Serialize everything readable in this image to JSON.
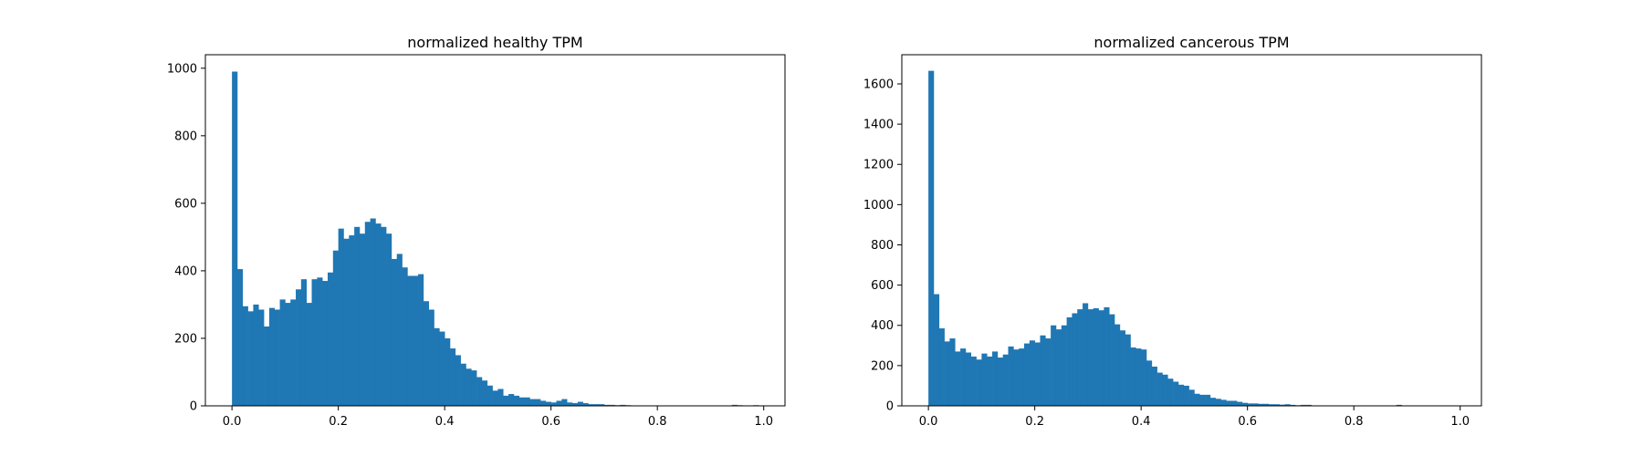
{
  "bar_color": "#1f77b4",
  "chart_data": [
    {
      "type": "bar",
      "title": "normalized healthy TPM",
      "xlabel": "",
      "ylabel": "",
      "xlim": [
        -0.05,
        1.04
      ],
      "ylim": [
        0,
        1040
      ],
      "bin_width": 0.01,
      "xticks": [
        0.0,
        0.2,
        0.4,
        0.6,
        0.8,
        1.0
      ],
      "xtick_labels": [
        "0.0",
        "0.2",
        "0.4",
        "0.6",
        "0.8",
        "1.0"
      ],
      "yticks": [
        0,
        200,
        400,
        600,
        800,
        1000
      ],
      "ytick_labels": [
        "0",
        "200",
        "400",
        "600",
        "800",
        "1000"
      ],
      "bin_starts": [
        0.0,
        0.01,
        0.02,
        0.03,
        0.04,
        0.05,
        0.06,
        0.07,
        0.08,
        0.09,
        0.1,
        0.11,
        0.12,
        0.13,
        0.14,
        0.15,
        0.16,
        0.17,
        0.18,
        0.19,
        0.2,
        0.21,
        0.22,
        0.23,
        0.24,
        0.25,
        0.26,
        0.27,
        0.28,
        0.29,
        0.3,
        0.31,
        0.32,
        0.33,
        0.34,
        0.35,
        0.36,
        0.37,
        0.38,
        0.39,
        0.4,
        0.41,
        0.42,
        0.43,
        0.44,
        0.45,
        0.46,
        0.47,
        0.48,
        0.49,
        0.5,
        0.51,
        0.52,
        0.53,
        0.54,
        0.55,
        0.56,
        0.57,
        0.58,
        0.59,
        0.6,
        0.61,
        0.62,
        0.63,
        0.64,
        0.65,
        0.66,
        0.67,
        0.68,
        0.69,
        0.7,
        0.71,
        0.72,
        0.73,
        0.74,
        0.75,
        0.76,
        0.77,
        0.78,
        0.79,
        0.8,
        0.81,
        0.82,
        0.83,
        0.84,
        0.85,
        0.86,
        0.87,
        0.88,
        0.89,
        0.9,
        0.91,
        0.92,
        0.93,
        0.94,
        0.95,
        0.96,
        0.97,
        0.98,
        0.99
      ],
      "counts": [
        990,
        405,
        295,
        280,
        300,
        285,
        235,
        290,
        285,
        315,
        305,
        315,
        345,
        375,
        305,
        375,
        380,
        370,
        395,
        460,
        525,
        495,
        505,
        530,
        510,
        545,
        555,
        540,
        530,
        510,
        435,
        450,
        410,
        385,
        385,
        390,
        310,
        285,
        230,
        220,
        200,
        170,
        150,
        125,
        110,
        105,
        85,
        75,
        60,
        45,
        50,
        30,
        35,
        30,
        25,
        25,
        20,
        20,
        15,
        12,
        10,
        15,
        20,
        10,
        8,
        12,
        8,
        5,
        5,
        5,
        3,
        3,
        2,
        3,
        2,
        1,
        1,
        1,
        1,
        1,
        1,
        1,
        0,
        0,
        0,
        0,
        0,
        0,
        0,
        0,
        0,
        0,
        0,
        0,
        3,
        2,
        0,
        0,
        2,
        1
      ]
    },
    {
      "type": "bar",
      "title": "normalized cancerous TPM",
      "xlabel": "",
      "ylabel": "",
      "xlim": [
        -0.05,
        1.04
      ],
      "ylim": [
        0,
        1745
      ],
      "bin_width": 0.01,
      "xticks": [
        0.0,
        0.2,
        0.4,
        0.6,
        0.8,
        1.0
      ],
      "xtick_labels": [
        "0.0",
        "0.2",
        "0.4",
        "0.6",
        "0.8",
        "1.0"
      ],
      "yticks": [
        0,
        200,
        400,
        600,
        800,
        1000,
        1200,
        1400,
        1600
      ],
      "ytick_labels": [
        "0",
        "200",
        "400",
        "600",
        "800",
        "1000",
        "1200",
        "1400",
        "1600"
      ],
      "bin_starts": [
        0.0,
        0.01,
        0.02,
        0.03,
        0.04,
        0.05,
        0.06,
        0.07,
        0.08,
        0.09,
        0.1,
        0.11,
        0.12,
        0.13,
        0.14,
        0.15,
        0.16,
        0.17,
        0.18,
        0.19,
        0.2,
        0.21,
        0.22,
        0.23,
        0.24,
        0.25,
        0.26,
        0.27,
        0.28,
        0.29,
        0.3,
        0.31,
        0.32,
        0.33,
        0.34,
        0.35,
        0.36,
        0.37,
        0.38,
        0.39,
        0.4,
        0.41,
        0.42,
        0.43,
        0.44,
        0.45,
        0.46,
        0.47,
        0.48,
        0.49,
        0.5,
        0.51,
        0.52,
        0.53,
        0.54,
        0.55,
        0.56,
        0.57,
        0.58,
        0.59,
        0.6,
        0.61,
        0.62,
        0.63,
        0.64,
        0.65,
        0.66,
        0.67,
        0.68,
        0.69,
        0.7,
        0.71,
        0.72,
        0.73,
        0.74,
        0.75,
        0.76,
        0.77,
        0.78,
        0.79,
        0.8,
        0.81,
        0.82,
        0.83,
        0.84,
        0.85,
        0.86,
        0.87,
        0.88,
        0.89,
        0.9,
        0.91,
        0.92,
        0.93,
        0.94,
        0.95,
        0.96,
        0.97,
        0.98,
        0.99
      ],
      "counts": [
        1665,
        555,
        385,
        320,
        335,
        270,
        285,
        265,
        245,
        230,
        260,
        245,
        270,
        240,
        255,
        295,
        280,
        285,
        310,
        325,
        315,
        350,
        335,
        400,
        380,
        400,
        440,
        460,
        480,
        510,
        480,
        485,
        475,
        490,
        455,
        405,
        375,
        355,
        290,
        285,
        280,
        225,
        195,
        165,
        155,
        135,
        120,
        105,
        100,
        80,
        60,
        55,
        55,
        40,
        35,
        30,
        25,
        25,
        20,
        15,
        12,
        12,
        10,
        10,
        8,
        8,
        6,
        8,
        5,
        3,
        5,
        5,
        2,
        2,
        1,
        1,
        1,
        1,
        1,
        1,
        1,
        1,
        0,
        0,
        0,
        0,
        0,
        0,
        5,
        0,
        0,
        0,
        0,
        0,
        0,
        0,
        0,
        0,
        0,
        0
      ]
    }
  ]
}
